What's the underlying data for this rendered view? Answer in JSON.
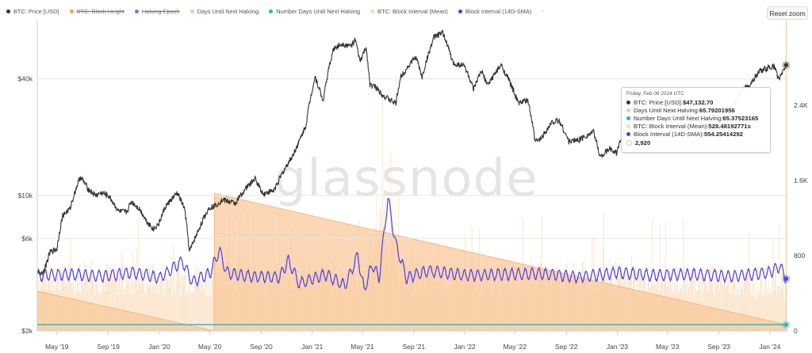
{
  "legend": [
    {
      "label": "BTC: Price [USD]",
      "color": "#333333",
      "enabled": true
    },
    {
      "label": "BTC: Block Height",
      "color": "#f0a058",
      "enabled": false
    },
    {
      "label": "Halving Epoch",
      "color": "#8c6fd6",
      "enabled": false
    },
    {
      "label": "Days Until Next Halving",
      "color": "#f9c898",
      "enabled": true
    },
    {
      "label": "Number Days Until Next Halving",
      "color": "#2bb3bd",
      "enabled": true
    },
    {
      "label": "BTC: Block Interval (Mean)",
      "color": "#fbd9b5",
      "enabled": true
    },
    {
      "label": "Block Interval (14D-SMA)",
      "color": "#4a3df0",
      "enabled": true
    }
  ],
  "legend_more": "-",
  "reset_zoom_label": "Reset zoom",
  "watermark": "glassnode",
  "tooltip": {
    "date": "Friday, Feb 09 2024 UTC",
    "rows": [
      {
        "label": "BTC: Price [USD]: ",
        "value": "$47,132.70",
        "color": "#333333"
      },
      {
        "label": "Days Until Next Halving: ",
        "value": "65.79201956",
        "color": "#f9c898"
      },
      {
        "label": "Number Days Until Next Halving: ",
        "value": "65.37523165",
        "color": "#2bb3bd"
      },
      {
        "label": "BTC: Block Interval (Mean): ",
        "value": "528.48192771s",
        "color": "#fbd9b5"
      },
      {
        "label": "Block Interval (14D-SMA): ",
        "value": "554.25414292",
        "color": "#4a3df0"
      },
      {
        "label": "",
        "value": "2,920",
        "color": "#ffffff"
      }
    ]
  },
  "chart_data": {
    "type": "line",
    "x_ticks": [
      "May '19",
      "Sep '19",
      "Jan '20",
      "May '20",
      "Sep '20",
      "Jan '21",
      "May '21",
      "Sep '21",
      "Jan '22",
      "May '22",
      "Sep '22",
      "Jan '23",
      "May '23",
      "Sep '23",
      "Jan '24"
    ],
    "x_range": [
      "2019-03-15",
      "2024-02-14"
    ],
    "y_left": {
      "scale": "log",
      "ticks": [
        "$2k",
        "$6k",
        "$10k",
        "$40k"
      ],
      "tick_values": [
        2000,
        6000,
        10000,
        40000
      ],
      "range": [
        2000,
        80000
      ]
    },
    "y_right": {
      "scale": "linear",
      "ticks": [
        "0",
        "800",
        "1.6K",
        "2.4K"
      ],
      "tick_values": [
        0,
        800,
        1600,
        2400
      ],
      "range": [
        0,
        3300
      ]
    },
    "halving_date": "2020-05-11",
    "series": [
      {
        "name": "BTC: Price [USD]",
        "axis": "left",
        "color": "#333333",
        "points": [
          [
            "2019-03-15",
            3900
          ],
          [
            "2019-04-01",
            4100
          ],
          [
            "2019-04-15",
            5100
          ],
          [
            "2019-05-01",
            5300
          ],
          [
            "2019-05-15",
            7900
          ],
          [
            "2019-06-01",
            8500
          ],
          [
            "2019-06-26",
            12500
          ],
          [
            "2019-07-15",
            10800
          ],
          [
            "2019-08-01",
            10000
          ],
          [
            "2019-08-15",
            10300
          ],
          [
            "2019-09-01",
            10000
          ],
          [
            "2019-09-25",
            8300
          ],
          [
            "2019-10-15",
            8200
          ],
          [
            "2019-10-26",
            9300
          ],
          [
            "2019-11-15",
            8500
          ],
          [
            "2019-12-01",
            7400
          ],
          [
            "2019-12-18",
            6700
          ],
          [
            "2020-01-01",
            7200
          ],
          [
            "2020-01-15",
            8700
          ],
          [
            "2020-02-13",
            10300
          ],
          [
            "2020-03-01",
            8600
          ],
          [
            "2020-03-13",
            5100
          ],
          [
            "2020-04-01",
            6400
          ],
          [
            "2020-04-30",
            8700
          ],
          [
            "2020-05-11",
            8800
          ],
          [
            "2020-06-01",
            9500
          ],
          [
            "2020-07-01",
            9100
          ],
          [
            "2020-07-28",
            11000
          ],
          [
            "2020-08-17",
            12200
          ],
          [
            "2020-09-05",
            10200
          ],
          [
            "2020-10-01",
            10600
          ],
          [
            "2020-10-21",
            12900
          ],
          [
            "2020-11-15",
            16000
          ],
          [
            "2020-12-01",
            19000
          ],
          [
            "2020-12-17",
            23000
          ],
          [
            "2021-01-08",
            41000
          ],
          [
            "2021-01-27",
            30500
          ],
          [
            "2021-02-21",
            57000
          ],
          [
            "2021-03-13",
            61000
          ],
          [
            "2021-04-01",
            58800
          ],
          [
            "2021-04-14",
            63500
          ],
          [
            "2021-04-25",
            49000
          ],
          [
            "2021-05-10",
            58000
          ],
          [
            "2021-05-19",
            37000
          ],
          [
            "2021-06-01",
            36500
          ],
          [
            "2021-06-22",
            32500
          ],
          [
            "2021-07-20",
            29800
          ],
          [
            "2021-08-01",
            41000
          ],
          [
            "2021-09-06",
            52000
          ],
          [
            "2021-09-21",
            40500
          ],
          [
            "2021-10-20",
            66000
          ],
          [
            "2021-11-10",
            69000
          ],
          [
            "2021-12-04",
            48000
          ],
          [
            "2021-12-31",
            47000
          ],
          [
            "2022-01-22",
            35000
          ],
          [
            "2022-02-10",
            44000
          ],
          [
            "2022-02-24",
            37000
          ],
          [
            "2022-03-29",
            47000
          ],
          [
            "2022-04-15",
            40000
          ],
          [
            "2022-05-09",
            30000
          ],
          [
            "2022-06-01",
            31000
          ],
          [
            "2022-06-18",
            19000
          ],
          [
            "2022-07-01",
            19500
          ],
          [
            "2022-07-30",
            24000
          ],
          [
            "2022-08-15",
            24300
          ],
          [
            "2022-09-07",
            19000
          ],
          [
            "2022-10-01",
            19400
          ],
          [
            "2022-11-05",
            21300
          ],
          [
            "2022-11-21",
            15800
          ],
          [
            "2022-12-15",
            17500
          ],
          [
            "2022-12-31",
            16500
          ],
          [
            "2023-01-21",
            23000
          ],
          [
            "2023-02-16",
            24500
          ],
          [
            "2023-03-10",
            20000
          ],
          [
            "2023-03-20",
            28000
          ],
          [
            "2023-04-14",
            30500
          ],
          [
            "2023-05-15",
            27000
          ],
          [
            "2023-06-15",
            25000
          ],
          [
            "2023-07-01",
            30500
          ],
          [
            "2023-08-01",
            29200
          ],
          [
            "2023-08-18",
            26000
          ],
          [
            "2023-09-11",
            25000
          ],
          [
            "2023-10-01",
            27500
          ],
          [
            "2023-10-24",
            34500
          ],
          [
            "2023-11-15",
            37500
          ],
          [
            "2023-12-08",
            44000
          ],
          [
            "2024-01-11",
            46500
          ],
          [
            "2024-01-23",
            39500
          ],
          [
            "2024-02-09",
            47132.7
          ]
        ]
      },
      {
        "name": "Days Until Next Halving",
        "axis": "right",
        "color": "#f9c898",
        "points": [
          [
            "2019-03-15",
            423
          ],
          [
            "2020-05-11",
            0
          ],
          [
            "2020-05-12",
            1462
          ],
          [
            "2024-02-09",
            65.79201956
          ]
        ]
      },
      {
        "name": "Number Days Until Next Halving",
        "axis": "right",
        "color": "#2bb3bd",
        "points": [
          [
            "2019-03-15",
            65.4
          ],
          [
            "2024-02-09",
            65.37523165
          ]
        ]
      },
      {
        "name": "BTC: Block Interval (Mean)",
        "axis": "right",
        "color": "#fbd9b5",
        "display": "spikes",
        "points": [
          [
            "2019-03-15",
            600
          ],
          [
            "2019-07-01",
            610
          ],
          [
            "2020-01-01",
            590
          ],
          [
            "2020-05-11",
            600
          ],
          [
            "2020-05-25",
            750
          ],
          [
            "2020-08-01",
            600
          ],
          [
            "2021-01-15",
            620
          ],
          [
            "2021-05-01",
            560
          ],
          [
            "2021-06-25",
            1300
          ],
          [
            "2021-08-01",
            640
          ],
          [
            "2022-01-01",
            590
          ],
          [
            "2022-06-01",
            600
          ],
          [
            "2023-01-01",
            600
          ],
          [
            "2023-06-01",
            580
          ],
          [
            "2024-01-01",
            560
          ],
          [
            "2024-02-09",
            528.48192771
          ]
        ]
      },
      {
        "name": "Block Interval (14D-SMA)",
        "axis": "right",
        "color": "#4a3df0",
        "points": [
          [
            "2019-03-15",
            590
          ],
          [
            "2019-06-01",
            600
          ],
          [
            "2019-08-15",
            580
          ],
          [
            "2019-11-01",
            620
          ],
          [
            "2020-01-01",
            560
          ],
          [
            "2020-02-26",
            740
          ],
          [
            "2020-03-20",
            520
          ],
          [
            "2020-05-01",
            610
          ],
          [
            "2020-05-24",
            860
          ],
          [
            "2020-06-10",
            620
          ],
          [
            "2020-08-01",
            580
          ],
          [
            "2020-10-15",
            570
          ],
          [
            "2020-11-05",
            750
          ],
          [
            "2020-12-01",
            500
          ],
          [
            "2021-02-01",
            600
          ],
          [
            "2021-03-20",
            480
          ],
          [
            "2021-04-20",
            800
          ],
          [
            "2021-05-05",
            430
          ],
          [
            "2021-05-25",
            710
          ],
          [
            "2021-06-10",
            560
          ],
          [
            "2021-07-01",
            1410
          ],
          [
            "2021-07-20",
            920
          ],
          [
            "2021-08-15",
            560
          ],
          [
            "2021-10-01",
            640
          ],
          [
            "2022-01-01",
            590
          ],
          [
            "2022-04-01",
            600
          ],
          [
            "2022-07-01",
            610
          ],
          [
            "2022-10-01",
            570
          ],
          [
            "2023-01-01",
            620
          ],
          [
            "2023-04-01",
            590
          ],
          [
            "2023-07-01",
            600
          ],
          [
            "2023-10-01",
            580
          ],
          [
            "2024-01-01",
            620
          ],
          [
            "2024-01-25",
            690
          ],
          [
            "2024-02-09",
            554.25414292
          ]
        ]
      }
    ],
    "marker_value": 2920
  }
}
